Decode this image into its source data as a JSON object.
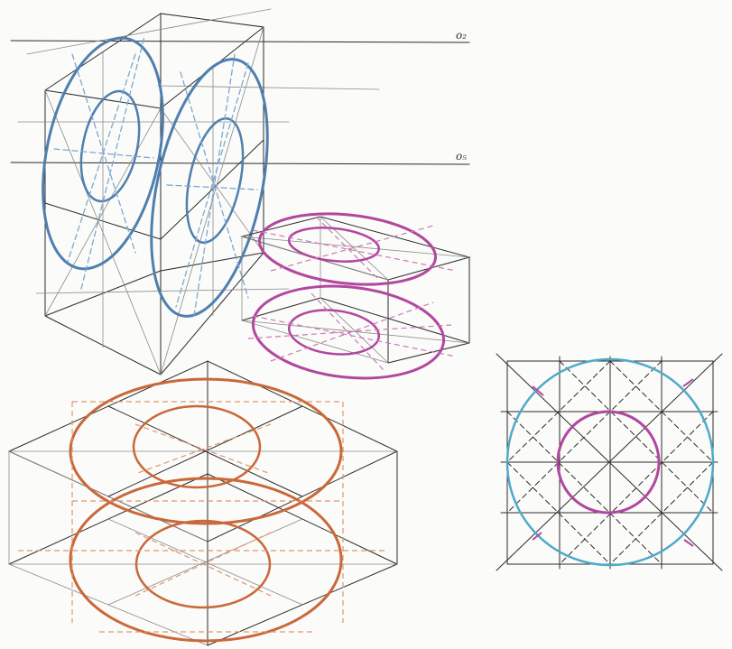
{
  "labels": {
    "o2": "o₂",
    "o5": "o₅"
  },
  "colors": {
    "paper": "#fbfbf9",
    "pencil": "#2b2b2b",
    "blue_vertical": "#4f7fae",
    "blue_light": "#7da8d2",
    "magenta_horizontal": "#b2479f",
    "orange_horizontal": "#c9683a",
    "cyan_circle": "#4fa9c9"
  }
}
